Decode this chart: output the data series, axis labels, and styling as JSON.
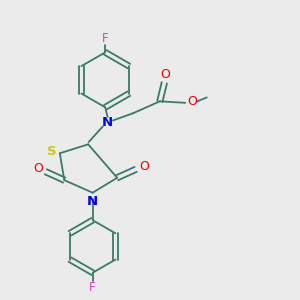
{
  "bg_color": "#ebebeb",
  "bond_color": "#3a7a6a",
  "N_color": "#0000ee",
  "S_color": "#cccc00",
  "O_color": "#ee0000",
  "F_color": "#cc44cc",
  "figsize": [
    3.0,
    3.0
  ],
  "dpi": 100,
  "xlim": [
    0,
    10
  ],
  "ylim": [
    0,
    10
  ]
}
